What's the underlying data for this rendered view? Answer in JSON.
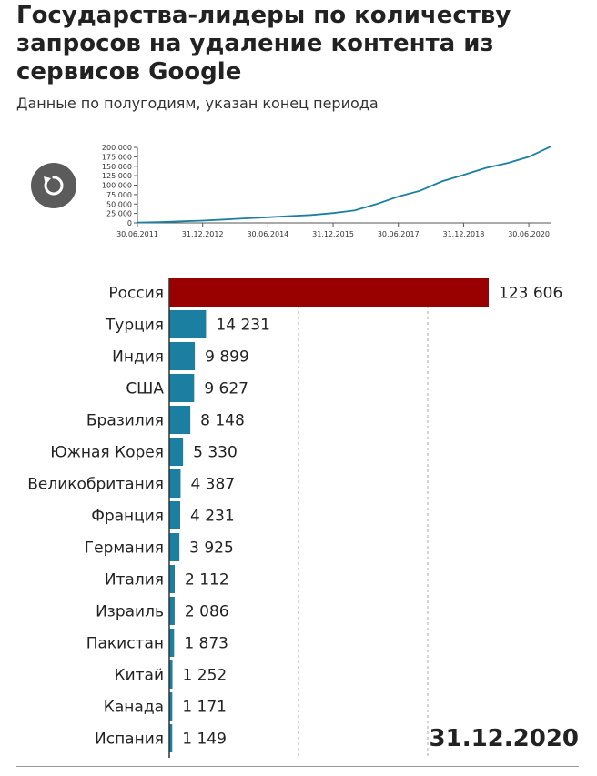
{
  "title": "Государства-лидеры по количеству запросов на удаление контента из сервисов Google",
  "subtitle": "Данные по полугодиям, указан конец периода",
  "period_label": "31.12.2020",
  "replay_icon": "replay-icon",
  "colors": {
    "highlight": "#990000",
    "bar": "#1a7fa0",
    "line": "#1a7fa0"
  },
  "chart_data": [
    {
      "type": "line",
      "x_tick_labels": [
        "30.06.2011",
        "31.12.2012",
        "30.06.2014",
        "31.12.2015",
        "30.06.2017",
        "31.12.2018",
        "30.06.2020"
      ],
      "y_tick_labels": [
        "0",
        "25 000",
        "50 000",
        "75 000",
        "100 000",
        "125 000",
        "150 000",
        "175 000",
        "200 000"
      ],
      "ylim": [
        0,
        200000
      ],
      "x": [
        "30.06.2011",
        "31.12.2011",
        "30.06.2012",
        "31.12.2012",
        "30.06.2013",
        "31.12.2013",
        "30.06.2014",
        "31.12.2014",
        "30.06.2015",
        "31.12.2015",
        "30.06.2016",
        "31.12.2016",
        "30.06.2017",
        "31.12.2017",
        "30.06.2018",
        "31.12.2018",
        "30.06.2019",
        "31.12.2019",
        "30.06.2020",
        "31.12.2020"
      ],
      "values": [
        1000,
        2000,
        4000,
        6000,
        9000,
        12000,
        15000,
        18000,
        21000,
        26000,
        33000,
        50000,
        70000,
        85000,
        110000,
        127000,
        145000,
        158000,
        175000,
        202000
      ]
    },
    {
      "type": "bar",
      "orientation": "horizontal",
      "categories": [
        "Россия",
        "Турция",
        "Индия",
        "США",
        "Бразилия",
        "Южная Корея",
        "Великобритания",
        "Франция",
        "Германия",
        "Италия",
        "Израиль",
        "Пакистан",
        "Китай",
        "Канада",
        "Испания"
      ],
      "values": [
        123606,
        14231,
        9899,
        9627,
        8148,
        5330,
        4387,
        4231,
        3925,
        2112,
        2086,
        1873,
        1252,
        1171,
        1149
      ],
      "value_labels": [
        "123 606",
        "14 231",
        "9 899",
        "9 627",
        "8 148",
        "5 330",
        "4 387",
        "4 231",
        "3 925",
        "2 112",
        "2 086",
        "1 873",
        "1 252",
        "1 171",
        "1 149"
      ],
      "highlight_index": 0,
      "xlim": [
        0,
        123606
      ],
      "gridlines": [
        50000,
        100000
      ]
    }
  ]
}
